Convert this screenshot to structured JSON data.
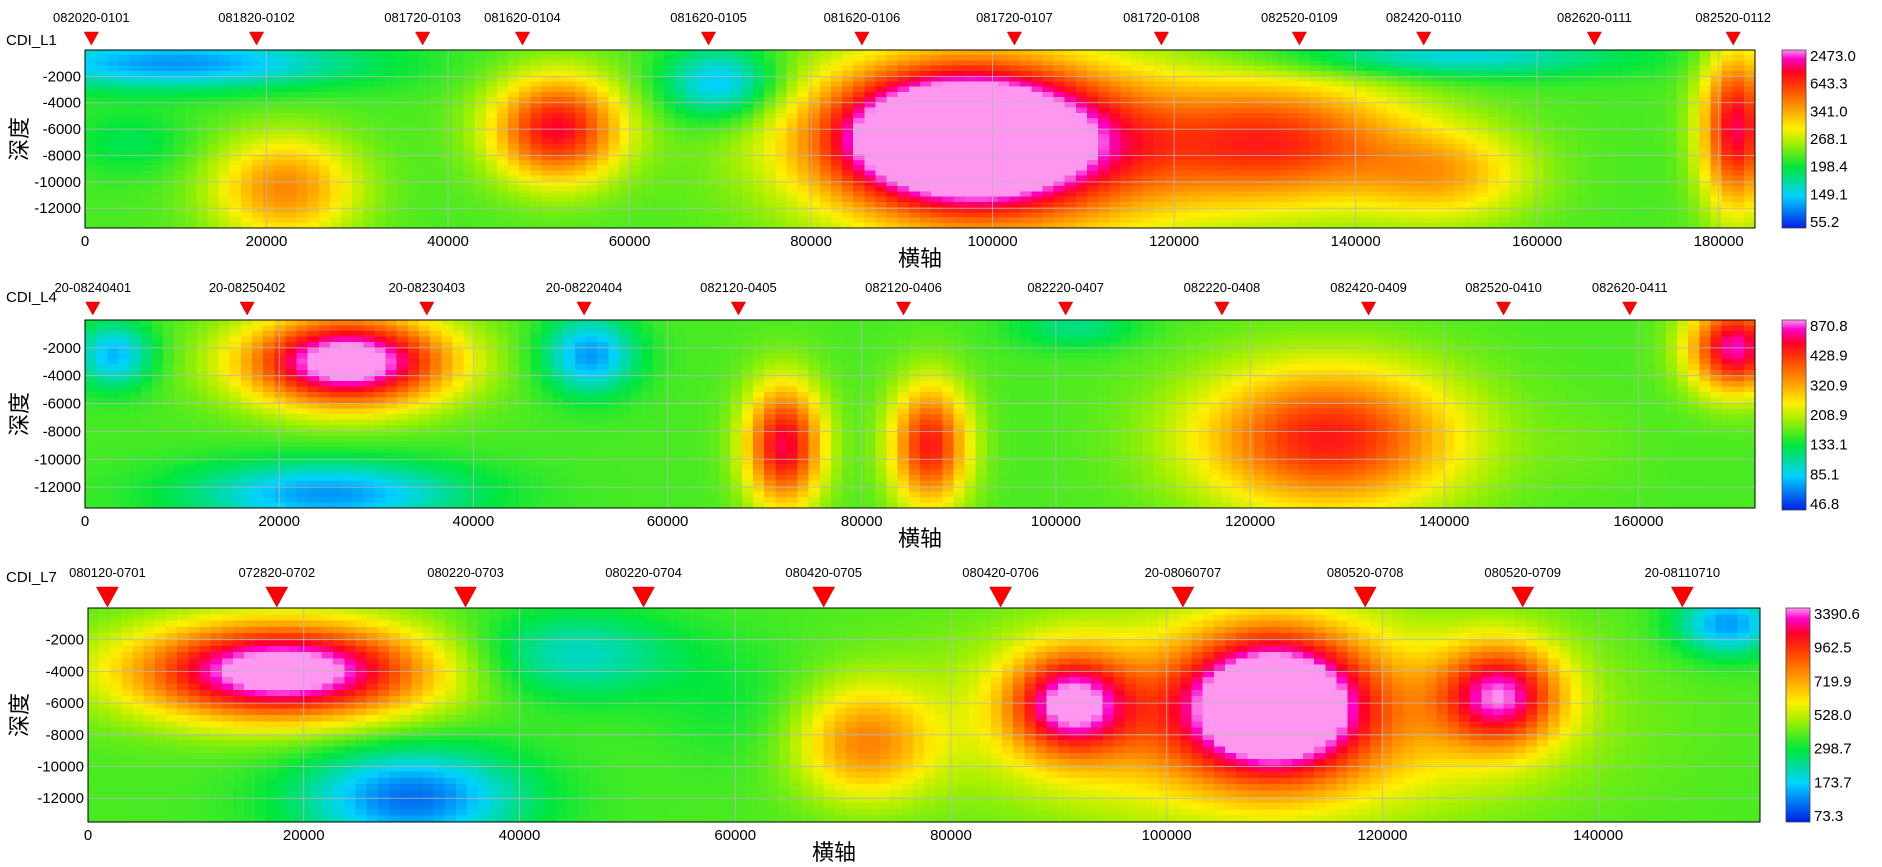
{
  "chart_data": [
    {
      "type": "heatmap",
      "title": "CDI_L1",
      "xlabel": "横轴",
      "ylabel": "深度",
      "xlim": [
        0,
        184000
      ],
      "ylim": [
        -13500,
        0
      ],
      "x_ticks": [
        0,
        20000,
        40000,
        60000,
        80000,
        100000,
        120000,
        140000,
        160000,
        180000
      ],
      "y_ticks": [
        -2000,
        -4000,
        -6000,
        -8000,
        -10000,
        -12000
      ],
      "grid": true,
      "stations": [
        {
          "label": "082020-0101",
          "x": 700
        },
        {
          "label": "081820-0102",
          "x": 18900
        },
        {
          "label": "081720-0103",
          "x": 37200
        },
        {
          "label": "081620-0104",
          "x": 48200
        },
        {
          "label": "081620-0105",
          "x": 68700
        },
        {
          "label": "081620-0106",
          "x": 85600
        },
        {
          "label": "081720-0107",
          "x": 102400
        },
        {
          "label": "081720-0108",
          "x": 118600
        },
        {
          "label": "082520-0109",
          "x": 133800
        },
        {
          "label": "082420-0110",
          "x": 147500
        },
        {
          "label": "082620-0111",
          "x": 166300
        },
        {
          "label": "082520-0112",
          "x": 181600
        }
      ],
      "colorbar": [
        "2473.0",
        "643.3",
        "341.0",
        "268.1",
        "198.4",
        "149.1",
        "55.2"
      ],
      "anomalies": [
        {
          "x": 96000,
          "y": -6500,
          "rx": 17000,
          "ry": 6000,
          "v": 1.15
        },
        {
          "x": 102000,
          "y": -7500,
          "rx": 26000,
          "ry": 8500,
          "v": 0.85
        },
        {
          "x": 52000,
          "y": -6000,
          "rx": 9000,
          "ry": 5000,
          "v": 0.88
        },
        {
          "x": 132000,
          "y": -7000,
          "rx": 18000,
          "ry": 6000,
          "v": 0.78
        },
        {
          "x": 182000,
          "y": -6000,
          "rx": 5000,
          "ry": 7500,
          "v": 0.9
        },
        {
          "x": 22000,
          "y": -10500,
          "rx": 10000,
          "ry": 5000,
          "v": 0.7
        },
        {
          "x": 150000,
          "y": -9500,
          "rx": 12000,
          "ry": 4500,
          "v": 0.62
        },
        {
          "x": 10000,
          "y": -1000,
          "rx": 25000,
          "ry": 2500,
          "v": 0.12
        },
        {
          "x": 70000,
          "y": -2500,
          "rx": 8000,
          "ry": 3500,
          "v": 0.15
        },
        {
          "x": 150000,
          "y": -500,
          "rx": 25000,
          "ry": 2000,
          "v": 0.2
        },
        {
          "x": 5000,
          "y": -7000,
          "rx": 8000,
          "ry": 3000,
          "v": 0.32
        }
      ]
    },
    {
      "type": "heatmap",
      "title": "CDI_L4",
      "xlabel": "横轴",
      "ylabel": "深度",
      "xlim": [
        0,
        172000
      ],
      "ylim": [
        -13500,
        0
      ],
      "x_ticks": [
        0,
        20000,
        40000,
        60000,
        80000,
        100000,
        120000,
        140000,
        160000
      ],
      "y_ticks": [
        -2000,
        -4000,
        -6000,
        -8000,
        -10000,
        -12000
      ],
      "grid": true,
      "stations": [
        {
          "label": "20-08240401",
          "x": 800
        },
        {
          "label": "20-08250402",
          "x": 16700
        },
        {
          "label": "20-08230403",
          "x": 35200
        },
        {
          "label": "20-08220404",
          "x": 51400
        },
        {
          "label": "082120-0405",
          "x": 67300
        },
        {
          "label": "082120-0406",
          "x": 84300
        },
        {
          "label": "082220-0407",
          "x": 101000
        },
        {
          "label": "082220-0408",
          "x": 117100
        },
        {
          "label": "082420-0409",
          "x": 132200
        },
        {
          "label": "082520-0410",
          "x": 146100
        },
        {
          "label": "082620-0411",
          "x": 159100
        }
      ],
      "colorbar": [
        "870.8",
        "428.9",
        "320.9",
        "208.9",
        "133.1",
        "85.1",
        "46.8"
      ],
      "anomalies": [
        {
          "x": 27000,
          "y": -3000,
          "rx": 13000,
          "ry": 4000,
          "v": 1.1
        },
        {
          "x": 72000,
          "y": -9000,
          "rx": 5000,
          "ry": 5500,
          "v": 0.9
        },
        {
          "x": 87000,
          "y": -9000,
          "rx": 5000,
          "ry": 5500,
          "v": 0.85
        },
        {
          "x": 128000,
          "y": -8500,
          "rx": 17000,
          "ry": 6500,
          "v": 0.85
        },
        {
          "x": 170000,
          "y": -2000,
          "rx": 6000,
          "ry": 4000,
          "v": 0.95
        },
        {
          "x": 25000,
          "y": -12500,
          "rx": 18000,
          "ry": 3000,
          "v": 0.12
        },
        {
          "x": 3000,
          "y": -2500,
          "rx": 5000,
          "ry": 3000,
          "v": 0.15
        },
        {
          "x": 52000,
          "y": -2500,
          "rx": 6000,
          "ry": 3500,
          "v": 0.12
        },
        {
          "x": 102000,
          "y": -500,
          "rx": 8000,
          "ry": 2000,
          "v": 0.28
        },
        {
          "x": 155000,
          "y": -9000,
          "rx": 8000,
          "ry": 4000,
          "v": 0.42
        }
      ]
    },
    {
      "type": "heatmap",
      "title": "CDI_L7",
      "xlabel": "横轴",
      "ylabel": "深度",
      "xlim": [
        0,
        155000
      ],
      "ylim": [
        -13500,
        0
      ],
      "x_ticks": [
        0,
        20000,
        40000,
        60000,
        80000,
        100000,
        120000,
        140000
      ],
      "y_ticks": [
        -2000,
        -4000,
        -6000,
        -8000,
        -10000,
        -12000
      ],
      "grid": true,
      "stations": [
        {
          "label": "080120-0701",
          "x": 1800
        },
        {
          "label": "072820-0702",
          "x": 17500
        },
        {
          "label": "080220-0703",
          "x": 35000
        },
        {
          "label": "080220-0704",
          "x": 51500
        },
        {
          "label": "080420-0705",
          "x": 68200
        },
        {
          "label": "080420-0706",
          "x": 84600
        },
        {
          "label": "20-08060707",
          "x": 101500
        },
        {
          "label": "080520-0708",
          "x": 118400
        },
        {
          "label": "080520-0709",
          "x": 133000
        },
        {
          "label": "20-08110710",
          "x": 147800
        }
      ],
      "colorbar": [
        "3390.6",
        "962.5",
        "719.9",
        "528.0",
        "298.7",
        "173.7",
        "73.3"
      ],
      "anomalies": [
        {
          "x": 18000,
          "y": -4000,
          "rx": 17000,
          "ry": 3800,
          "v": 1.1
        },
        {
          "x": 110000,
          "y": -6000,
          "rx": 10000,
          "ry": 5500,
          "v": 1.05
        },
        {
          "x": 91000,
          "y": -6000,
          "rx": 7000,
          "ry": 4000,
          "v": 0.88
        },
        {
          "x": 131000,
          "y": -5500,
          "rx": 7000,
          "ry": 4000,
          "v": 0.88
        },
        {
          "x": 108000,
          "y": -7000,
          "rx": 30000,
          "ry": 7500,
          "v": 0.72
        },
        {
          "x": 72000,
          "y": -8500,
          "rx": 8000,
          "ry": 4500,
          "v": 0.68
        },
        {
          "x": 30000,
          "y": -12000,
          "rx": 13000,
          "ry": 4000,
          "v": 0.08
        },
        {
          "x": 45000,
          "y": -3000,
          "rx": 12000,
          "ry": 3500,
          "v": 0.22
        },
        {
          "x": 152000,
          "y": -1000,
          "rx": 6000,
          "ry": 2500,
          "v": 0.12
        },
        {
          "x": 60000,
          "y": -6000,
          "rx": 9000,
          "ry": 5000,
          "v": 0.35
        }
      ]
    }
  ]
}
